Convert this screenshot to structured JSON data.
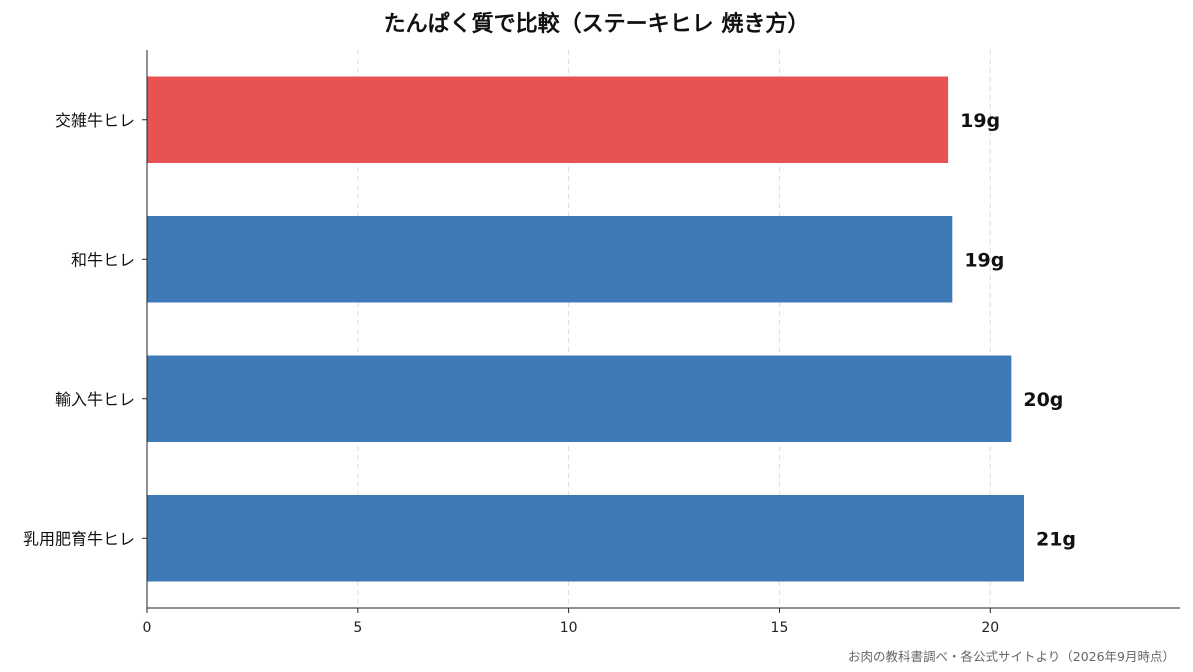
{
  "chart_data": {
    "type": "bar",
    "orientation": "horizontal",
    "title": "たんぱく質で比較（ステーキヒレ 焼き方）",
    "categories": [
      "交雑牛ヒレ",
      "和牛ヒレ",
      "輸入牛ヒレ",
      "乳用肥育牛ヒレ"
    ],
    "values": [
      19.0,
      19.1,
      20.5,
      20.8
    ],
    "data_labels": [
      "19g",
      "19g",
      "20g",
      "21g"
    ],
    "xlim": [
      0,
      24.5
    ],
    "xticks": [
      0,
      5,
      10,
      15,
      20
    ],
    "xlabel": "",
    "ylabel": "",
    "grid": "vertical-dashed",
    "highlight_index": 0,
    "colors": {
      "highlight": "#e85252",
      "default": "#3e7ab8"
    }
  },
  "source_note": "お肉の教科書調べ・各公式サイトより（2026年9月時点）"
}
